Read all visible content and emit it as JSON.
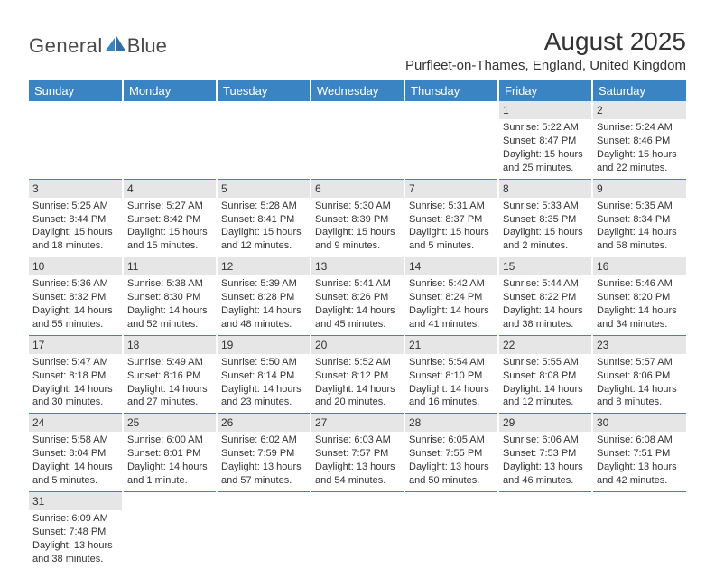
{
  "logo": {
    "text1": "General",
    "text2": "Blue",
    "brand_color": "#3b84c4"
  },
  "title": "August 2025",
  "location": "Purfleet-on-Thames, England, United Kingdom",
  "colors": {
    "header_bg": "#3b84c4",
    "header_text": "#ffffff",
    "daynum_bg": "#e6e6e6",
    "border": "#3b84c4",
    "text": "#333333"
  },
  "fonts": {
    "title_size": 28,
    "location_size": 15,
    "header_size": 13,
    "cell_size": 11
  },
  "weekdays": [
    "Sunday",
    "Monday",
    "Tuesday",
    "Wednesday",
    "Thursday",
    "Friday",
    "Saturday"
  ],
  "weeks": [
    [
      null,
      null,
      null,
      null,
      null,
      {
        "day": "1",
        "sunrise": "Sunrise: 5:22 AM",
        "sunset": "Sunset: 8:47 PM",
        "daylight": "Daylight: 15 hours and 25 minutes."
      },
      {
        "day": "2",
        "sunrise": "Sunrise: 5:24 AM",
        "sunset": "Sunset: 8:46 PM",
        "daylight": "Daylight: 15 hours and 22 minutes."
      }
    ],
    [
      {
        "day": "3",
        "sunrise": "Sunrise: 5:25 AM",
        "sunset": "Sunset: 8:44 PM",
        "daylight": "Daylight: 15 hours and 18 minutes."
      },
      {
        "day": "4",
        "sunrise": "Sunrise: 5:27 AM",
        "sunset": "Sunset: 8:42 PM",
        "daylight": "Daylight: 15 hours and 15 minutes."
      },
      {
        "day": "5",
        "sunrise": "Sunrise: 5:28 AM",
        "sunset": "Sunset: 8:41 PM",
        "daylight": "Daylight: 15 hours and 12 minutes."
      },
      {
        "day": "6",
        "sunrise": "Sunrise: 5:30 AM",
        "sunset": "Sunset: 8:39 PM",
        "daylight": "Daylight: 15 hours and 9 minutes."
      },
      {
        "day": "7",
        "sunrise": "Sunrise: 5:31 AM",
        "sunset": "Sunset: 8:37 PM",
        "daylight": "Daylight: 15 hours and 5 minutes."
      },
      {
        "day": "8",
        "sunrise": "Sunrise: 5:33 AM",
        "sunset": "Sunset: 8:35 PM",
        "daylight": "Daylight: 15 hours and 2 minutes."
      },
      {
        "day": "9",
        "sunrise": "Sunrise: 5:35 AM",
        "sunset": "Sunset: 8:34 PM",
        "daylight": "Daylight: 14 hours and 58 minutes."
      }
    ],
    [
      {
        "day": "10",
        "sunrise": "Sunrise: 5:36 AM",
        "sunset": "Sunset: 8:32 PM",
        "daylight": "Daylight: 14 hours and 55 minutes."
      },
      {
        "day": "11",
        "sunrise": "Sunrise: 5:38 AM",
        "sunset": "Sunset: 8:30 PM",
        "daylight": "Daylight: 14 hours and 52 minutes."
      },
      {
        "day": "12",
        "sunrise": "Sunrise: 5:39 AM",
        "sunset": "Sunset: 8:28 PM",
        "daylight": "Daylight: 14 hours and 48 minutes."
      },
      {
        "day": "13",
        "sunrise": "Sunrise: 5:41 AM",
        "sunset": "Sunset: 8:26 PM",
        "daylight": "Daylight: 14 hours and 45 minutes."
      },
      {
        "day": "14",
        "sunrise": "Sunrise: 5:42 AM",
        "sunset": "Sunset: 8:24 PM",
        "daylight": "Daylight: 14 hours and 41 minutes."
      },
      {
        "day": "15",
        "sunrise": "Sunrise: 5:44 AM",
        "sunset": "Sunset: 8:22 PM",
        "daylight": "Daylight: 14 hours and 38 minutes."
      },
      {
        "day": "16",
        "sunrise": "Sunrise: 5:46 AM",
        "sunset": "Sunset: 8:20 PM",
        "daylight": "Daylight: 14 hours and 34 minutes."
      }
    ],
    [
      {
        "day": "17",
        "sunrise": "Sunrise: 5:47 AM",
        "sunset": "Sunset: 8:18 PM",
        "daylight": "Daylight: 14 hours and 30 minutes."
      },
      {
        "day": "18",
        "sunrise": "Sunrise: 5:49 AM",
        "sunset": "Sunset: 8:16 PM",
        "daylight": "Daylight: 14 hours and 27 minutes."
      },
      {
        "day": "19",
        "sunrise": "Sunrise: 5:50 AM",
        "sunset": "Sunset: 8:14 PM",
        "daylight": "Daylight: 14 hours and 23 minutes."
      },
      {
        "day": "20",
        "sunrise": "Sunrise: 5:52 AM",
        "sunset": "Sunset: 8:12 PM",
        "daylight": "Daylight: 14 hours and 20 minutes."
      },
      {
        "day": "21",
        "sunrise": "Sunrise: 5:54 AM",
        "sunset": "Sunset: 8:10 PM",
        "daylight": "Daylight: 14 hours and 16 minutes."
      },
      {
        "day": "22",
        "sunrise": "Sunrise: 5:55 AM",
        "sunset": "Sunset: 8:08 PM",
        "daylight": "Daylight: 14 hours and 12 minutes."
      },
      {
        "day": "23",
        "sunrise": "Sunrise: 5:57 AM",
        "sunset": "Sunset: 8:06 PM",
        "daylight": "Daylight: 14 hours and 8 minutes."
      }
    ],
    [
      {
        "day": "24",
        "sunrise": "Sunrise: 5:58 AM",
        "sunset": "Sunset: 8:04 PM",
        "daylight": "Daylight: 14 hours and 5 minutes."
      },
      {
        "day": "25",
        "sunrise": "Sunrise: 6:00 AM",
        "sunset": "Sunset: 8:01 PM",
        "daylight": "Daylight: 14 hours and 1 minute."
      },
      {
        "day": "26",
        "sunrise": "Sunrise: 6:02 AM",
        "sunset": "Sunset: 7:59 PM",
        "daylight": "Daylight: 13 hours and 57 minutes."
      },
      {
        "day": "27",
        "sunrise": "Sunrise: 6:03 AM",
        "sunset": "Sunset: 7:57 PM",
        "daylight": "Daylight: 13 hours and 54 minutes."
      },
      {
        "day": "28",
        "sunrise": "Sunrise: 6:05 AM",
        "sunset": "Sunset: 7:55 PM",
        "daylight": "Daylight: 13 hours and 50 minutes."
      },
      {
        "day": "29",
        "sunrise": "Sunrise: 6:06 AM",
        "sunset": "Sunset: 7:53 PM",
        "daylight": "Daylight: 13 hours and 46 minutes."
      },
      {
        "day": "30",
        "sunrise": "Sunrise: 6:08 AM",
        "sunset": "Sunset: 7:51 PM",
        "daylight": "Daylight: 13 hours and 42 minutes."
      }
    ],
    [
      {
        "day": "31",
        "sunrise": "Sunrise: 6:09 AM",
        "sunset": "Sunset: 7:48 PM",
        "daylight": "Daylight: 13 hours and 38 minutes."
      },
      null,
      null,
      null,
      null,
      null,
      null
    ]
  ]
}
